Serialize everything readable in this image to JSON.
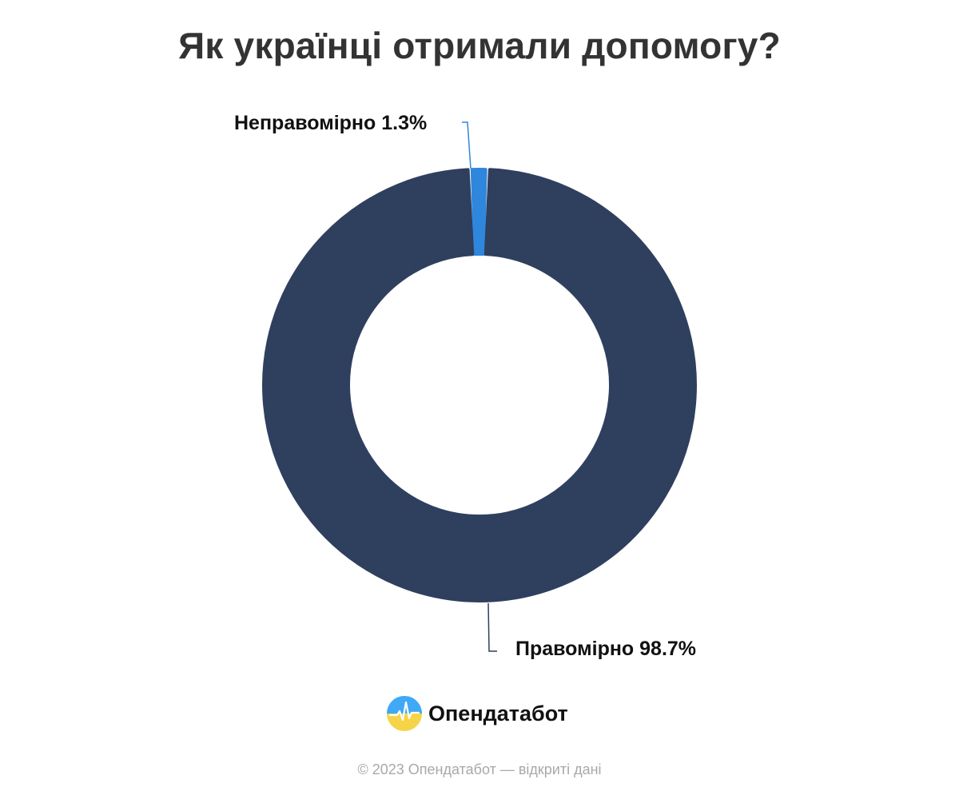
{
  "chart_data": {
    "type": "pie",
    "title": "Як українці отримали допомогу?",
    "variant": "donut",
    "slices": [
      {
        "label": "Неправомірно",
        "value": 1.3,
        "display": "Неправомірно 1.3%",
        "color": "#2f86dd"
      },
      {
        "label": "Правомірно",
        "value": 98.7,
        "display": "Правомірно 98.7%",
        "color": "#2f3f5e"
      }
    ]
  },
  "brand": {
    "name": "Опендатабот",
    "logo_icon": "opendatabot-logo-icon",
    "logo_colors": [
      "#3fa9f5",
      "#f5d547"
    ]
  },
  "footer": {
    "copyright": "© 2023 Опендатабот — відкриті дані"
  }
}
